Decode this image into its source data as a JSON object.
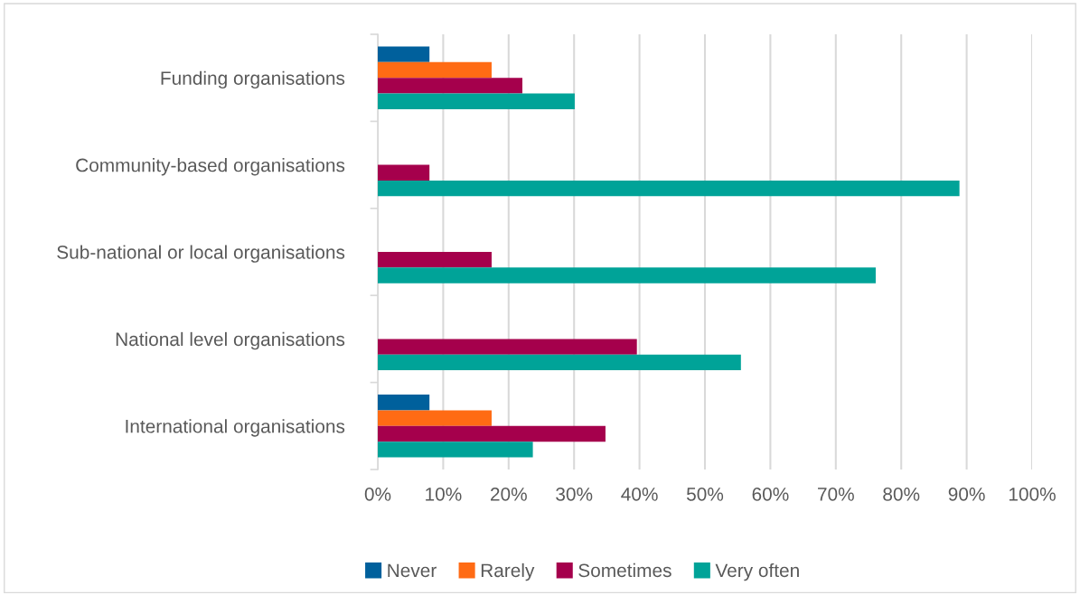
{
  "chart_data": {
    "type": "bar",
    "orientation": "horizontal",
    "categories": [
      "Funding organisations",
      "Community-based organisations",
      "Sub-national or local organisations",
      "National level organisations",
      "International organisations"
    ],
    "series": [
      {
        "name": "Never",
        "color": "#00609c",
        "values": [
          7.9,
          null,
          null,
          null,
          7.9
        ]
      },
      {
        "name": "Rarely",
        "color": "#ff6b14",
        "values": [
          17.4,
          null,
          null,
          null,
          17.4
        ]
      },
      {
        "name": "Sometimes",
        "color": "#a5004c",
        "values": [
          22.1,
          7.9,
          17.4,
          39.6,
          34.8
        ]
      },
      {
        "name": "Very often",
        "color": "#00a398",
        "values": [
          30.1,
          88.9,
          76.1,
          55.5,
          23.7
        ]
      }
    ],
    "xlim": [
      0,
      100
    ],
    "xticks": [
      {
        "value": 0,
        "label": "0%"
      },
      {
        "value": 10,
        "label": "10%"
      },
      {
        "value": 20,
        "label": "20%"
      },
      {
        "value": 30,
        "label": "30%"
      },
      {
        "value": 40,
        "label": "40%"
      },
      {
        "value": 50,
        "label": "50%"
      },
      {
        "value": 60,
        "label": "60%"
      },
      {
        "value": 70,
        "label": "70%"
      },
      {
        "value": 80,
        "label": "80%"
      },
      {
        "value": 90,
        "label": "90%"
      },
      {
        "value": 100,
        "label": "100%"
      }
    ],
    "grid": "x",
    "legend": "bottom"
  }
}
